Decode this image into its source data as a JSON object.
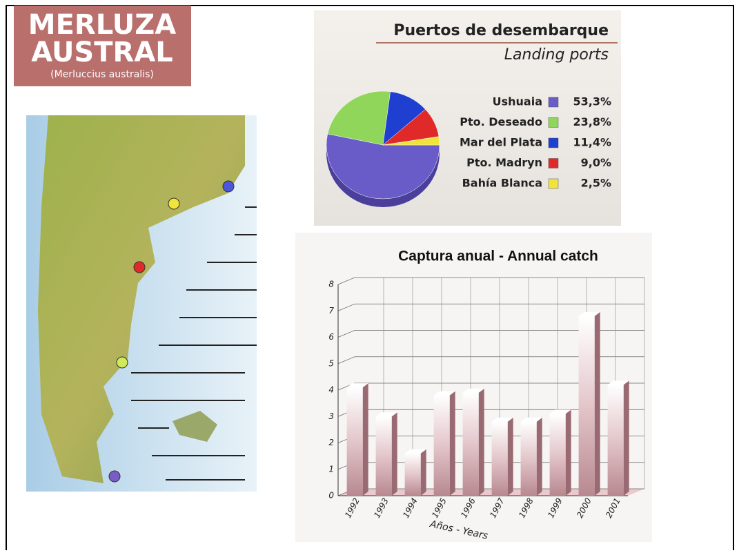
{
  "header": {
    "title": [
      "MERLUZA",
      "AUSTRAL"
    ],
    "subtitle": "(Merluccius australis)"
  },
  "chart_data": [
    {
      "type": "pie",
      "title": "Puertos de desembarque",
      "subtitle": "Landing ports",
      "categories": [
        "Ushuaia",
        "Pto. Deseado",
        "Mar del Plata",
        "Pto. Madryn",
        "Bahía Blanca"
      ],
      "values": [
        53.3,
        23.8,
        11.4,
        9.0,
        2.5
      ],
      "value_labels": [
        "53,3%",
        "23,8%",
        "11,4%",
        "9,0%",
        "2,5%"
      ],
      "colors": [
        "#6a5cc8",
        "#8fd65a",
        "#1f3fd0",
        "#e02a2a",
        "#f0e43a"
      ]
    },
    {
      "type": "bar",
      "title": "Captura anual - Annual catch",
      "x_label": "Años - Years",
      "categories": [
        "1992",
        "1993",
        "1994",
        "1995",
        "1996",
        "1997",
        "1998",
        "1999",
        "2000",
        "2001"
      ],
      "values": [
        4.1,
        3.0,
        1.6,
        3.8,
        3.9,
        2.8,
        2.8,
        3.1,
        6.8,
        4.2
      ],
      "color": "#c9a0a6",
      "ylim": [
        0,
        8
      ],
      "yticks": [
        0,
        1,
        2,
        3,
        4,
        5,
        6,
        7,
        8
      ],
      "grid": true
    }
  ]
}
